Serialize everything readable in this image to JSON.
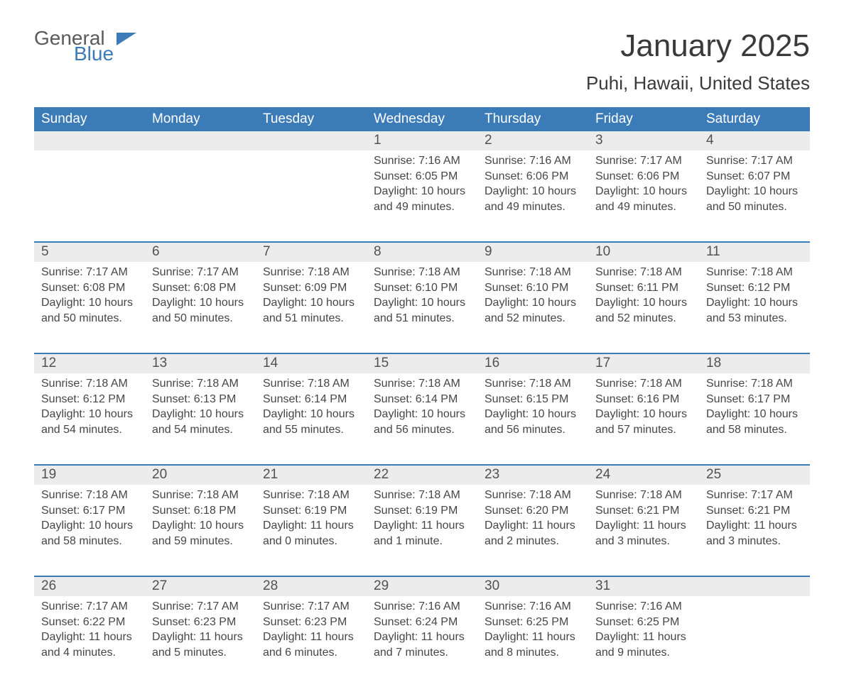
{
  "logo": {
    "part1": "General",
    "part2": "Blue"
  },
  "title": "January 2025",
  "location": "Puhi, Hawaii, United States",
  "colors": {
    "header_bg": "#3b7bb8",
    "header_text": "#ffffff",
    "daynum_bg": "#ececec",
    "border": "#3b7bb8",
    "body_text": "#464646",
    "title_text": "#3a3a3a",
    "page_bg": "#ffffff"
  },
  "weekdays": [
    "Sunday",
    "Monday",
    "Tuesday",
    "Wednesday",
    "Thursday",
    "Friday",
    "Saturday"
  ],
  "weeks": [
    [
      null,
      null,
      null,
      {
        "n": "1",
        "sunrise": "7:16 AM",
        "sunset": "6:05 PM",
        "daylight": "10 hours and 49 minutes."
      },
      {
        "n": "2",
        "sunrise": "7:16 AM",
        "sunset": "6:06 PM",
        "daylight": "10 hours and 49 minutes."
      },
      {
        "n": "3",
        "sunrise": "7:17 AM",
        "sunset": "6:06 PM",
        "daylight": "10 hours and 49 minutes."
      },
      {
        "n": "4",
        "sunrise": "7:17 AM",
        "sunset": "6:07 PM",
        "daylight": "10 hours and 50 minutes."
      }
    ],
    [
      {
        "n": "5",
        "sunrise": "7:17 AM",
        "sunset": "6:08 PM",
        "daylight": "10 hours and 50 minutes."
      },
      {
        "n": "6",
        "sunrise": "7:17 AM",
        "sunset": "6:08 PM",
        "daylight": "10 hours and 50 minutes."
      },
      {
        "n": "7",
        "sunrise": "7:18 AM",
        "sunset": "6:09 PM",
        "daylight": "10 hours and 51 minutes."
      },
      {
        "n": "8",
        "sunrise": "7:18 AM",
        "sunset": "6:10 PM",
        "daylight": "10 hours and 51 minutes."
      },
      {
        "n": "9",
        "sunrise": "7:18 AM",
        "sunset": "6:10 PM",
        "daylight": "10 hours and 52 minutes."
      },
      {
        "n": "10",
        "sunrise": "7:18 AM",
        "sunset": "6:11 PM",
        "daylight": "10 hours and 52 minutes."
      },
      {
        "n": "11",
        "sunrise": "7:18 AM",
        "sunset": "6:12 PM",
        "daylight": "10 hours and 53 minutes."
      }
    ],
    [
      {
        "n": "12",
        "sunrise": "7:18 AM",
        "sunset": "6:12 PM",
        "daylight": "10 hours and 54 minutes."
      },
      {
        "n": "13",
        "sunrise": "7:18 AM",
        "sunset": "6:13 PM",
        "daylight": "10 hours and 54 minutes."
      },
      {
        "n": "14",
        "sunrise": "7:18 AM",
        "sunset": "6:14 PM",
        "daylight": "10 hours and 55 minutes."
      },
      {
        "n": "15",
        "sunrise": "7:18 AM",
        "sunset": "6:14 PM",
        "daylight": "10 hours and 56 minutes."
      },
      {
        "n": "16",
        "sunrise": "7:18 AM",
        "sunset": "6:15 PM",
        "daylight": "10 hours and 56 minutes."
      },
      {
        "n": "17",
        "sunrise": "7:18 AM",
        "sunset": "6:16 PM",
        "daylight": "10 hours and 57 minutes."
      },
      {
        "n": "18",
        "sunrise": "7:18 AM",
        "sunset": "6:17 PM",
        "daylight": "10 hours and 58 minutes."
      }
    ],
    [
      {
        "n": "19",
        "sunrise": "7:18 AM",
        "sunset": "6:17 PM",
        "daylight": "10 hours and 58 minutes."
      },
      {
        "n": "20",
        "sunrise": "7:18 AM",
        "sunset": "6:18 PM",
        "daylight": "10 hours and 59 minutes."
      },
      {
        "n": "21",
        "sunrise": "7:18 AM",
        "sunset": "6:19 PM",
        "daylight": "11 hours and 0 minutes."
      },
      {
        "n": "22",
        "sunrise": "7:18 AM",
        "sunset": "6:19 PM",
        "daylight": "11 hours and 1 minute."
      },
      {
        "n": "23",
        "sunrise": "7:18 AM",
        "sunset": "6:20 PM",
        "daylight": "11 hours and 2 minutes."
      },
      {
        "n": "24",
        "sunrise": "7:18 AM",
        "sunset": "6:21 PM",
        "daylight": "11 hours and 3 minutes."
      },
      {
        "n": "25",
        "sunrise": "7:17 AM",
        "sunset": "6:21 PM",
        "daylight": "11 hours and 3 minutes."
      }
    ],
    [
      {
        "n": "26",
        "sunrise": "7:17 AM",
        "sunset": "6:22 PM",
        "daylight": "11 hours and 4 minutes."
      },
      {
        "n": "27",
        "sunrise": "7:17 AM",
        "sunset": "6:23 PM",
        "daylight": "11 hours and 5 minutes."
      },
      {
        "n": "28",
        "sunrise": "7:17 AM",
        "sunset": "6:23 PM",
        "daylight": "11 hours and 6 minutes."
      },
      {
        "n": "29",
        "sunrise": "7:16 AM",
        "sunset": "6:24 PM",
        "daylight": "11 hours and 7 minutes."
      },
      {
        "n": "30",
        "sunrise": "7:16 AM",
        "sunset": "6:25 PM",
        "daylight": "11 hours and 8 minutes."
      },
      {
        "n": "31",
        "sunrise": "7:16 AM",
        "sunset": "6:25 PM",
        "daylight": "11 hours and 9 minutes."
      },
      null
    ]
  ],
  "labels": {
    "sunrise": "Sunrise: ",
    "sunset": "Sunset: ",
    "daylight": "Daylight: "
  }
}
